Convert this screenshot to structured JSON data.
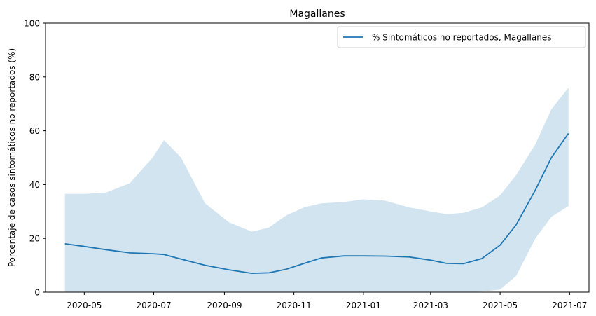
{
  "chart_data": {
    "type": "line",
    "title": "Magallanes",
    "xlabel": "",
    "ylabel": "Porcentaje de casos sintomáticos no reportados (%)",
    "ylim": [
      0,
      100
    ],
    "xlim": [
      "2020-03-28",
      "2021-07-18"
    ],
    "x_ticks": [
      "2020-05",
      "2020-07",
      "2020-09",
      "2020-11",
      "2021-01",
      "2021-03",
      "2021-05",
      "2021-07"
    ],
    "y_ticks": [
      0,
      20,
      40,
      60,
      80,
      100
    ],
    "grid": false,
    "legend_position": "top-right",
    "series": [
      {
        "name": "% Sintomáticos no reportados, Magallanes",
        "color": "#1f77b4",
        "x": [
          "2020-04-14",
          "2020-05-01",
          "2020-05-20",
          "2020-06-10",
          "2020-06-30",
          "2020-07-10",
          "2020-07-25",
          "2020-08-15",
          "2020-09-05",
          "2020-09-25",
          "2020-10-10",
          "2020-10-25",
          "2020-11-10",
          "2020-11-25",
          "2020-12-15",
          "2021-01-01",
          "2021-01-20",
          "2021-02-10",
          "2021-03-01",
          "2021-03-15",
          "2021-03-30",
          "2021-04-15",
          "2021-05-01",
          "2021-05-15",
          "2021-06-01",
          "2021-06-15",
          "2021-06-30"
        ],
        "y": [
          18.0,
          17.0,
          15.8,
          14.6,
          14.3,
          14.0,
          12.3,
          10.0,
          8.3,
          7.0,
          7.2,
          8.5,
          10.7,
          12.7,
          13.5,
          13.5,
          13.4,
          13.1,
          11.9,
          10.7,
          10.6,
          12.5,
          17.5,
          25.0,
          38.0,
          50.0,
          59.0
        ],
        "band_lower": [
          0,
          0,
          0,
          0,
          0,
          0,
          0,
          0,
          0,
          0,
          0,
          0,
          0,
          0,
          0,
          0,
          0,
          0,
          0,
          0,
          0,
          0.2,
          1.0,
          6.0,
          20.0,
          28.0,
          32.0
        ],
        "band_upper": [
          36.5,
          36.5,
          37.0,
          40.5,
          50.0,
          56.5,
          50.0,
          33.0,
          26.0,
          22.5,
          24.0,
          28.5,
          31.5,
          33.0,
          33.5,
          34.5,
          34.0,
          31.5,
          30.0,
          29.0,
          29.5,
          31.5,
          36.0,
          43.5,
          55.0,
          68.0,
          76.0
        ]
      }
    ]
  }
}
